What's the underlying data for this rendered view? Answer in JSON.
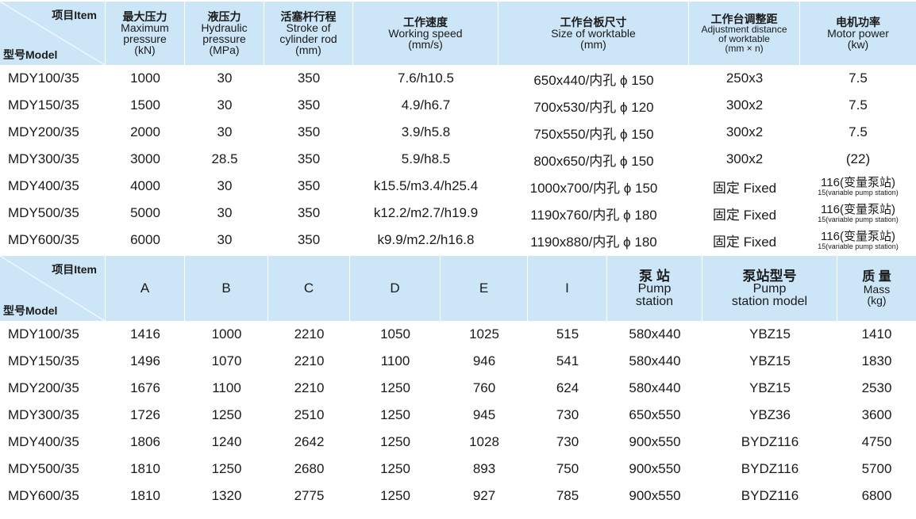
{
  "table1": {
    "item_label": "项目Item",
    "model_label": "型号Model",
    "headers": [
      {
        "zh": "最大压力",
        "en": [
          "Maximum",
          "pressure",
          "(kN)"
        ]
      },
      {
        "zh": "液压力",
        "en": [
          "Hydraulic",
          "pressure",
          "(MPa)"
        ]
      },
      {
        "zh": "活塞杆行程",
        "en": [
          "Stroke of",
          "cylinder rod",
          "(mm)"
        ]
      },
      {
        "zh": "工作速度",
        "en": [
          "Working speed",
          "(mm/s)"
        ]
      },
      {
        "zh": "工作台板尺寸",
        "en": [
          "Size of worktable",
          "(mm)"
        ]
      },
      {
        "zh": "工作台调整距",
        "en": [
          "Adjustment distance",
          "of worktable",
          "(mm × n)"
        ]
      },
      {
        "zh": "电机功率",
        "en": [
          "Motor power",
          "(kw)"
        ]
      }
    ],
    "rows": [
      {
        "model": "MDY100/35",
        "c1": "1000",
        "c2": "30",
        "c3": "350",
        "c4": "7.6/h10.5",
        "c5": "650x440/内孔 ϕ 150",
        "c6": "250x3",
        "c7": "7.5"
      },
      {
        "model": "MDY150/35",
        "c1": "1500",
        "c2": "30",
        "c3": "350",
        "c4": "4.9/h6.7",
        "c5": "700x530/内孔 ϕ 120",
        "c6": "300x2",
        "c7": "7.5"
      },
      {
        "model": "MDY200/35",
        "c1": "2000",
        "c2": "30",
        "c3": "350",
        "c4": "3.9/h5.8",
        "c5": "750x550/内孔 ϕ 150",
        "c6": "300x2",
        "c7": "7.5"
      },
      {
        "model": "MDY300/35",
        "c1": "3000",
        "c2": "28.5",
        "c3": "350",
        "c4": "5.9/h8.5",
        "c5": "800x650/内孔 ϕ 150",
        "c6": "300x2",
        "c7": "(22)"
      },
      {
        "model": "MDY400/35",
        "c1": "4000",
        "c2": "30",
        "c3": "350",
        "c4": "k15.5/m3.4/h25.4",
        "c5": "1000x700/内孔 ϕ 150",
        "c6": "固定 Fixed",
        "c7a": "116(变量泵站)",
        "c7b": "15(variable pump station)"
      },
      {
        "model": "MDY500/35",
        "c1": "5000",
        "c2": "30",
        "c3": "350",
        "c4": "k12.2/m2.7/h19.9",
        "c5": "1190x760/内孔 ϕ 180",
        "c6": "固定 Fixed",
        "c7a": "116(变量泵站)",
        "c7b": "15(variable pump station)"
      },
      {
        "model": "MDY600/35",
        "c1": "6000",
        "c2": "30",
        "c3": "350",
        "c4": "k9.9/m2.2/h16.8",
        "c5": "1190x880/内孔 ϕ 180",
        "c6": "固定 Fixed",
        "c7a": "116(变量泵站)",
        "c7b": "15(variable pump station)"
      }
    ]
  },
  "table2": {
    "item_label": "项目Item",
    "model_label": "型号Model",
    "headers": {
      "a": "A",
      "b": "B",
      "c": "C",
      "d": "D",
      "e": "E",
      "i": "I",
      "pump_zh": "泵 站",
      "pump_en": [
        "Pump",
        "station"
      ],
      "pump_model_zh": "泵站型号",
      "pump_model_en": [
        "Pump",
        "station model"
      ],
      "mass_zh": "质 量",
      "mass_en": [
        "Mass",
        "(kg)"
      ]
    },
    "rows": [
      {
        "model": "MDY100/35",
        "a": "1416",
        "b": "1000",
        "c": "2210",
        "d": "1050",
        "e": "1025",
        "i": "515",
        "pump": "580x440",
        "pump_model": "YBZ15",
        "mass": "1410"
      },
      {
        "model": "MDY150/35",
        "a": "1496",
        "b": "1070",
        "c": "2210",
        "d": "1100",
        "e": "946",
        "i": "541",
        "pump": "580x440",
        "pump_model": "YBZ15",
        "mass": "1830"
      },
      {
        "model": "MDY200/35",
        "a": "1676",
        "b": "1100",
        "c": "2210",
        "d": "1250",
        "e": "760",
        "i": "624",
        "pump": "580x440",
        "pump_model": "YBZ15",
        "mass": "2530"
      },
      {
        "model": "MDY300/35",
        "a": "1726",
        "b": "1250",
        "c": "2510",
        "d": "1250",
        "e": "945",
        "i": "730",
        "pump": "650x550",
        "pump_model": "YBZ36",
        "mass": "3600"
      },
      {
        "model": "MDY400/35",
        "a": "1806",
        "b": "1240",
        "c": "2642",
        "d": "1250",
        "e": "1028",
        "i": "730",
        "pump": "900x550",
        "pump_model": "BYDZ116",
        "mass": "4750"
      },
      {
        "model": "MDY500/35",
        "a": "1810",
        "b": "1250",
        "c": "2680",
        "d": "1250",
        "e": "893",
        "i": "750",
        "pump": "900x550",
        "pump_model": "BYDZ116",
        "mass": "5700"
      },
      {
        "model": "MDY600/35",
        "a": "1810",
        "b": "1320",
        "c": "2775",
        "d": "1250",
        "e": "927",
        "i": "785",
        "pump": "900x550",
        "pump_model": "BYDZ116",
        "mass": "6800"
      }
    ]
  }
}
